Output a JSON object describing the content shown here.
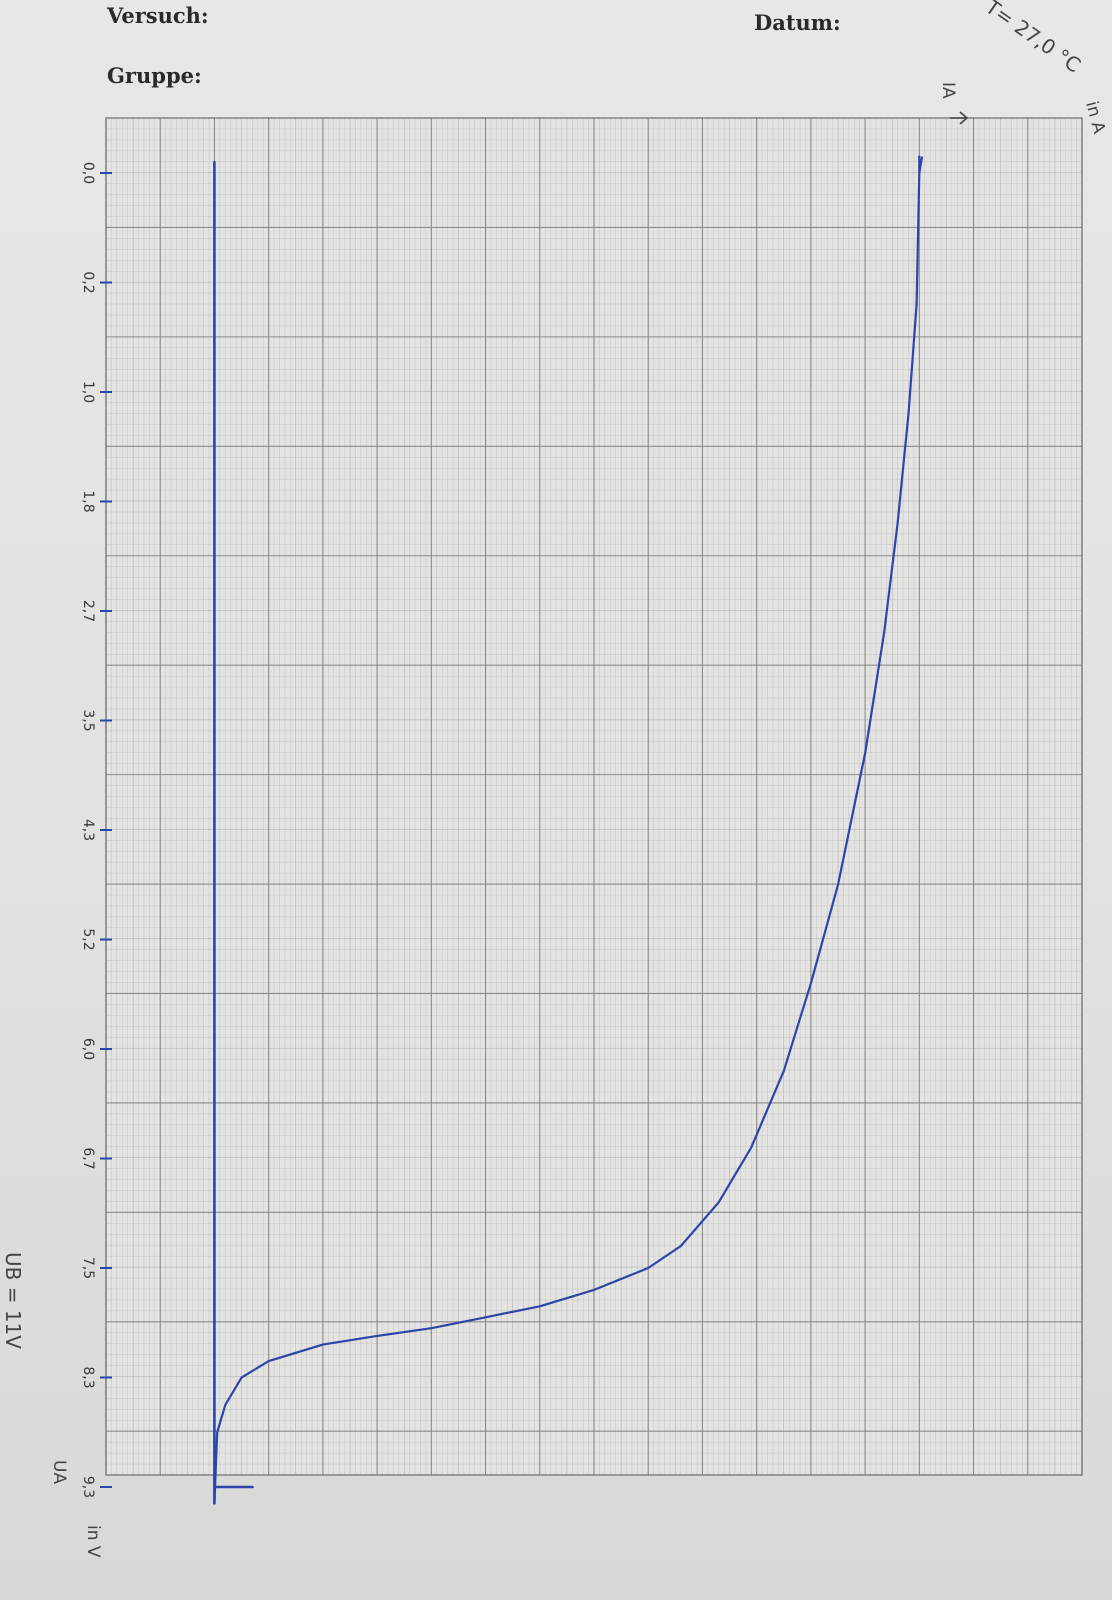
{
  "form": {
    "versuch_label": "Versuch:",
    "gruppe_label": "Gruppe:",
    "datum_label": "Datum:"
  },
  "annotations": {
    "temperature": "T= 27,0 °C",
    "ub": "UB = 11V"
  },
  "colors": {
    "ink": "#2b45a8",
    "grid_major": "#8a8a8a",
    "grid_minor": "#c4c4c2",
    "paper": "#e5e5e3"
  },
  "chart_data": {
    "type": "line",
    "title": "",
    "xlabel": "IA",
    "xunit": "in A",
    "ylabel": "UA",
    "yunit": "in V",
    "y_ticks": [
      "0,0",
      "0,2",
      "1,0",
      "1,8",
      "2,7",
      "3,5",
      "4,3",
      "5,2",
      "6,0",
      "6,7",
      "7,5",
      "8,3",
      "9,3"
    ],
    "x_range": [
      0,
      18
    ],
    "y_range_in_ticks": [
      0,
      12.2
    ],
    "series": [
      {
        "values_note_omitted": true,
        "points": [
          [
            2.0,
            12.15
          ],
          [
            2.05,
            11.5
          ],
          [
            2.2,
            11.25
          ],
          [
            2.5,
            11.0
          ],
          [
            3.0,
            10.85
          ],
          [
            4.0,
            10.7
          ],
          [
            5.0,
            10.62
          ],
          [
            6.0,
            10.55
          ],
          [
            7.0,
            10.45
          ],
          [
            8.0,
            10.35
          ],
          [
            9.0,
            10.2
          ],
          [
            10.0,
            10.0
          ],
          [
            10.6,
            9.8
          ],
          [
            11.3,
            9.4
          ],
          [
            11.9,
            8.9
          ],
          [
            12.5,
            8.2
          ],
          [
            13.0,
            7.4
          ],
          [
            13.5,
            6.5
          ],
          [
            14.0,
            5.3
          ],
          [
            14.35,
            4.2
          ],
          [
            14.6,
            3.2
          ],
          [
            14.8,
            2.2
          ],
          [
            14.95,
            1.2
          ],
          [
            15.0,
            0.0
          ],
          [
            15.0,
            -0.15
          ]
        ]
      },
      {
        "points": [
          [
            2.0,
            -0.1
          ],
          [
            2.0,
            12.15
          ]
        ]
      },
      {
        "points": [
          [
            2.0,
            12.0
          ],
          [
            2.7,
            12.0
          ]
        ]
      }
    ],
    "grid": true
  }
}
